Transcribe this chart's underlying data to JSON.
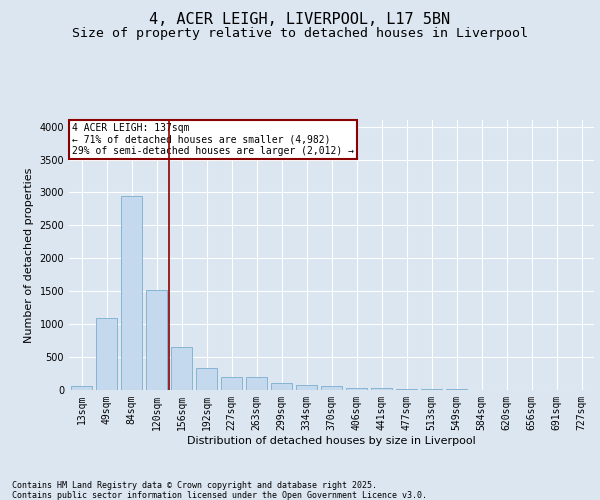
{
  "title": "4, ACER LEIGH, LIVERPOOL, L17 5BN",
  "subtitle": "Size of property relative to detached houses in Liverpool",
  "xlabel": "Distribution of detached houses by size in Liverpool",
  "ylabel": "Number of detached properties",
  "footnote1": "Contains HM Land Registry data © Crown copyright and database right 2025.",
  "footnote2": "Contains public sector information licensed under the Open Government Licence v3.0.",
  "annotation_line1": "4 ACER LEIGH: 137sqm",
  "annotation_line2": "← 71% of detached houses are smaller (4,982)",
  "annotation_line3": "29% of semi-detached houses are larger (2,012) →",
  "bar_categories": [
    "13sqm",
    "49sqm",
    "84sqm",
    "120sqm",
    "156sqm",
    "192sqm",
    "227sqm",
    "263sqm",
    "299sqm",
    "334sqm",
    "370sqm",
    "406sqm",
    "441sqm",
    "477sqm",
    "513sqm",
    "549sqm",
    "584sqm",
    "620sqm",
    "656sqm",
    "691sqm",
    "727sqm"
  ],
  "bar_values": [
    55,
    1100,
    2950,
    1520,
    650,
    330,
    195,
    190,
    100,
    80,
    55,
    30,
    30,
    20,
    15,
    8,
    5,
    3,
    2,
    1,
    1
  ],
  "bar_color": "#c5d9ee",
  "bar_edge_color": "#7aadce",
  "background_color": "#dce6f1",
  "plot_bg_color": "#dce6f1",
  "vline_x": 3.5,
  "vline_color": "#8b0000",
  "annotation_box_color": "#8b0000",
  "ylim": [
    0,
    4100
  ],
  "yticks": [
    0,
    500,
    1000,
    1500,
    2000,
    2500,
    3000,
    3500,
    4000
  ],
  "title_fontsize": 11,
  "subtitle_fontsize": 9.5,
  "axis_label_fontsize": 8,
  "tick_fontsize": 7,
  "annotation_fontsize": 7,
  "footnote_fontsize": 6
}
